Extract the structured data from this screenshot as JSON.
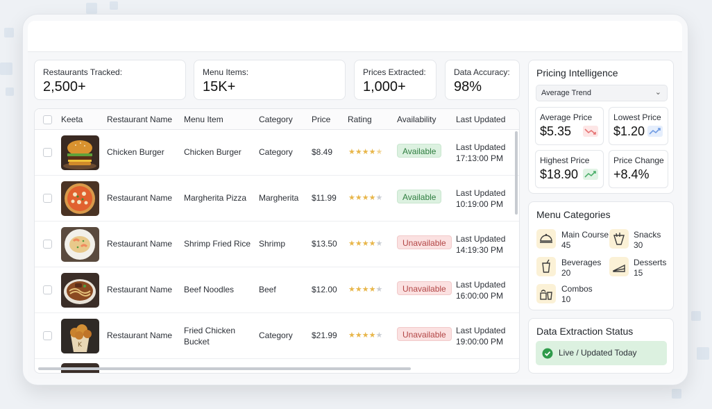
{
  "stats": [
    {
      "label": "Restaurants Tracked:",
      "value": "2,500+"
    },
    {
      "label": "Menu Items:",
      "value": "15K+"
    },
    {
      "label": "Prices Extracted:",
      "value": "1,000+"
    },
    {
      "label": "Data Accuracy:",
      "value": "98%"
    }
  ],
  "table": {
    "headers": {
      "brand": "Keeta",
      "restaurant": "Restaurant Name",
      "item": "Menu Item",
      "category": "Category",
      "price": "Price",
      "rating": "Rating",
      "availability": "Availability",
      "updated": "Last Updated"
    },
    "rows": [
      {
        "thumb": "burger",
        "restaurant": "Chicken Burger",
        "item": "Chicken Burger",
        "category": "Category",
        "price": "$8.49",
        "rating": 4.5,
        "availability": "Available",
        "status": "ok",
        "updated_label": "Last Updated",
        "updated_time": "17:13:00 PM"
      },
      {
        "thumb": "pizza",
        "restaurant": "Restaurant Name",
        "item": "Margherita Pizza",
        "category": "Margherita",
        "price": "$11.99",
        "rating": 4,
        "availability": "Available",
        "status": "ok",
        "updated_label": "Last Updated",
        "updated_time": "10:19:00 PM"
      },
      {
        "thumb": "friedrice",
        "restaurant": "Restaurant Name",
        "item": "Shrimp Fried Rice",
        "category": "Shrimp",
        "price": "$13.50",
        "rating": 4,
        "availability": "Unavailable",
        "status": "no",
        "updated_label": "Last Updated",
        "updated_time": "14:19:30 PM"
      },
      {
        "thumb": "noodles",
        "restaurant": "Restaurant Name",
        "item": "Beef Noodles",
        "category": "Beef",
        "price": "$12.00",
        "rating": 4,
        "availability": "Unavailable",
        "status": "no",
        "updated_label": "Last Updated",
        "updated_time": "16:00:00 PM"
      },
      {
        "thumb": "chicken",
        "restaurant": "Restaurant Name",
        "item": "Fried Chicken",
        "item2": "Bucket",
        "category": "Category",
        "price": "$21.99",
        "rating": 4,
        "availability": "Unavailable",
        "status": "no",
        "updated_label": "Last Updated",
        "updated_time": "19:00:00 PM"
      }
    ]
  },
  "pricing": {
    "title": "Pricing Intelligence",
    "dropdown": "Average Trend",
    "cards": [
      {
        "label": "Average Price",
        "value": "$5.35",
        "trend": "down",
        "color": "#e57373"
      },
      {
        "label": "Lowest Price",
        "value": "$1.20",
        "trend": "up",
        "color": "#6f9be3"
      },
      {
        "label": "Highest Price",
        "value": "$18.90",
        "trend": "up",
        "color": "#4caf6a"
      },
      {
        "label": "Price Change",
        "value": "+8.4%",
        "trend": "none",
        "color": ""
      }
    ]
  },
  "categories": {
    "title": "Menu Categories",
    "items": [
      {
        "name": "Main Course",
        "count": "45",
        "icon": "dish-icon"
      },
      {
        "name": "Snacks",
        "count": "30",
        "icon": "snacks-icon"
      },
      {
        "name": "Beverages",
        "count": "20",
        "icon": "drink-icon"
      },
      {
        "name": "Desserts",
        "count": "15",
        "icon": "cake-icon"
      },
      {
        "name": "Combos",
        "count": "10",
        "icon": "combo-icon"
      }
    ]
  },
  "extraction": {
    "title": "Data Extraction Status",
    "status": "Live / Updated Today",
    "color": "#2e9b4a"
  }
}
